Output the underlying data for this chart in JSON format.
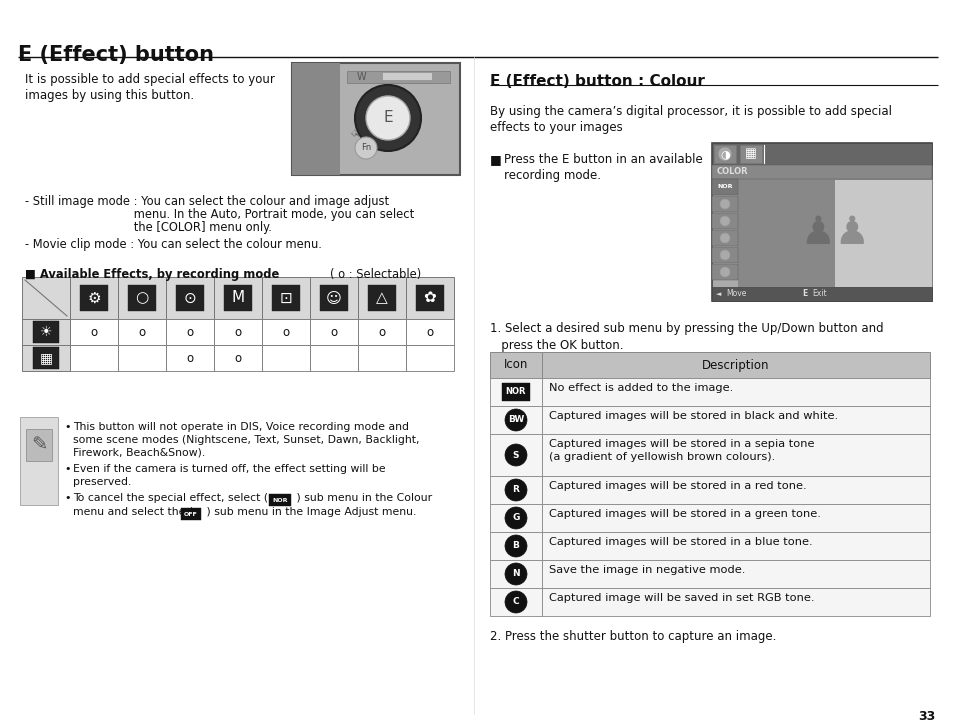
{
  "title": "E (Effect) button",
  "section2_title": "E (Effect) button : Colour",
  "left_intro": "It is possible to add special effects to your\nimages by using this button.",
  "still_mode_1": "- Still image mode : You can select the colour and image adjust",
  "still_mode_2": "                              menu. In the Auto, Portrait mode, you can select",
  "still_mode_3": "                              the [COLOR] menu only.",
  "movie_mode": "- Movie clip mode : You can select the colour menu.",
  "avail_header": "■ Available Effects, by recording mode",
  "selectable": "( o : Selectable)",
  "row1_vals": [
    "o",
    "o",
    "o",
    "o",
    "o",
    "o",
    "o",
    "o"
  ],
  "row2_vals": [
    "",
    "",
    "o",
    "o",
    "",
    "",
    "",
    ""
  ],
  "note1": "This button will not operate in DIS, Voice recording mode and\nsome scene modes (Nightscene, Text, Sunset, Dawn, Backlight,\nFirework, Beach&Snow).",
  "note2": "Even if the camera is turned off, the effect setting will be\npreserved.",
  "note3a": "To cancel the special effect, select ( ",
  "note3b": "NOR",
  "note3c": " ) sub menu in the Colour",
  "note3d": "menu and select the ( ",
  "note3e": "OFF",
  "note3f": " ) sub menu in the Image Adjust menu.",
  "right_intro": "By using the camera’s digital processor, it is possible to add special\neffects to your images",
  "press_bullet": "■",
  "press_text": "Press the E button in an available\nrecording mode.",
  "step1": "1. Select a desired sub menu by pressing the Up/Down button and\n   press the OK button.",
  "table_icon_header": "Icon",
  "table_desc_header": "Description",
  "icon_rows": [
    [
      "NOR",
      "No effect is added to the image."
    ],
    [
      "BW",
      "Captured images will be stored in black and white."
    ],
    [
      "S",
      "Captured images will be stored in a sepia tone\n(a gradient of yellowish brown colours)."
    ],
    [
      "R",
      "Captured images will be stored in a red tone."
    ],
    [
      "G",
      "Captured images will be stored in a green tone."
    ],
    [
      "B",
      "Captured images will be stored in a blue tone."
    ],
    [
      "N",
      "Save the image in negative mode."
    ],
    [
      "C",
      "Captured image will be saved in set RGB tone."
    ]
  ],
  "step2": "2. Press the shutter button to capture an image.",
  "page_num": "33",
  "bg": "#ffffff",
  "fg": "#111111",
  "mid_gray": "#888888",
  "light_gray": "#e0e0e0",
  "table_hdr_bg": "#c0c0c0",
  "table_row_bg": "#f2f2f2"
}
